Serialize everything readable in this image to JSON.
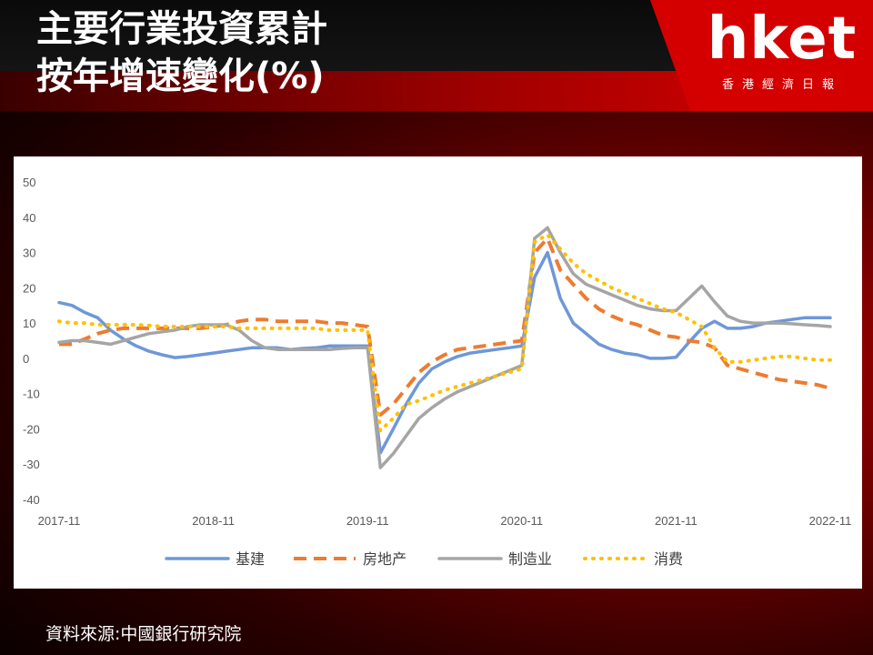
{
  "header": {
    "title_line1": "主要行業投資累計",
    "title_line2": "按年增速變化(%)"
  },
  "logo": {
    "brand": "hket",
    "subtitle": "香港經濟日報"
  },
  "source": "資料來源:中國銀行研究院",
  "colors": {
    "background_red": "#b30000",
    "logo_red": "#d40000",
    "series_infra": "#6e97d8",
    "series_property": "#ee7b30",
    "series_mfg": "#a5a5a5",
    "series_consumption": "#ffc000"
  },
  "chart_data": {
    "type": "line",
    "title": "",
    "xlabel": "",
    "ylabel": "",
    "ylim": [
      -40,
      50
    ],
    "yticks": [
      50,
      40,
      30,
      20,
      10,
      0,
      -10,
      -20,
      -30,
      -40
    ],
    "x_range": [
      0,
      60
    ],
    "xticks": [
      {
        "x": 0,
        "label": "2017-11"
      },
      {
        "x": 12,
        "label": "2018-11"
      },
      {
        "x": 24,
        "label": "2019-11"
      },
      {
        "x": 36,
        "label": "2020-11"
      },
      {
        "x": 48,
        "label": "2021-11"
      },
      {
        "x": 60,
        "label": "2022-11"
      }
    ],
    "grid": false,
    "legend_position": "bottom",
    "series": [
      {
        "name": "基建",
        "color": "#6e97d8",
        "style": "solid",
        "points": [
          [
            0,
            15.8
          ],
          [
            1,
            15
          ],
          [
            2,
            13
          ],
          [
            3,
            11.5
          ],
          [
            4,
            8
          ],
          [
            5,
            5.5
          ],
          [
            6,
            3.5
          ],
          [
            7,
            2
          ],
          [
            8,
            1
          ],
          [
            9,
            0.2
          ],
          [
            10,
            0.5
          ],
          [
            11,
            1
          ],
          [
            12,
            1.5
          ],
          [
            13,
            2
          ],
          [
            14,
            2.5
          ],
          [
            15,
            3
          ],
          [
            16,
            3
          ],
          [
            17,
            3
          ],
          [
            18,
            2.5
          ],
          [
            19,
            2.8
          ],
          [
            20,
            3
          ],
          [
            21,
            3.5
          ],
          [
            22,
            3.5
          ],
          [
            23,
            3.5
          ],
          [
            24,
            3.5
          ],
          [
            25,
            -26.8
          ],
          [
            26,
            -20
          ],
          [
            27,
            -13
          ],
          [
            28,
            -7
          ],
          [
            29,
            -3
          ],
          [
            30,
            -1
          ],
          [
            31,
            0.5
          ],
          [
            32,
            1.5
          ],
          [
            33,
            2
          ],
          [
            34,
            2.5
          ],
          [
            35,
            3
          ],
          [
            36,
            3.5
          ],
          [
            37,
            23
          ],
          [
            38,
            30
          ],
          [
            39,
            17
          ],
          [
            40,
            10
          ],
          [
            41,
            7
          ],
          [
            42,
            4
          ],
          [
            43,
            2.5
          ],
          [
            44,
            1.5
          ],
          [
            45,
            1
          ],
          [
            46,
            0
          ],
          [
            47,
            0
          ],
          [
            48,
            0.3
          ],
          [
            49,
            4.5
          ],
          [
            50,
            8.5
          ],
          [
            51,
            10.5
          ],
          [
            52,
            8.5
          ],
          [
            53,
            8.5
          ],
          [
            54,
            9
          ],
          [
            55,
            10
          ],
          [
            56,
            10.5
          ],
          [
            57,
            11
          ],
          [
            58,
            11.5
          ],
          [
            59,
            11.5
          ],
          [
            60,
            11.5
          ]
        ]
      },
      {
        "name": "房地产",
        "color": "#ee7b30",
        "style": "dashed",
        "points": [
          [
            0,
            4
          ],
          [
            1,
            4
          ],
          [
            2,
            5.5
          ],
          [
            3,
            7
          ],
          [
            4,
            8
          ],
          [
            5,
            8.5
          ],
          [
            6,
            8.5
          ],
          [
            7,
            8.5
          ],
          [
            8,
            8.5
          ],
          [
            9,
            8.5
          ],
          [
            10,
            8.5
          ],
          [
            11,
            8.5
          ],
          [
            12,
            9
          ],
          [
            13,
            9.5
          ],
          [
            14,
            10.5
          ],
          [
            15,
            11
          ],
          [
            16,
            11
          ],
          [
            17,
            10.5
          ],
          [
            18,
            10.5
          ],
          [
            19,
            10.5
          ],
          [
            20,
            10.5
          ],
          [
            21,
            10
          ],
          [
            22,
            10
          ],
          [
            23,
            9.5
          ],
          [
            24,
            9
          ],
          [
            25,
            -16
          ],
          [
            26,
            -13
          ],
          [
            27,
            -8.5
          ],
          [
            28,
            -4
          ],
          [
            29,
            -1
          ],
          [
            30,
            1
          ],
          [
            31,
            2.5
          ],
          [
            32,
            3
          ],
          [
            33,
            3.5
          ],
          [
            34,
            4
          ],
          [
            35,
            4.5
          ],
          [
            36,
            5
          ],
          [
            37,
            30
          ],
          [
            38,
            34
          ],
          [
            39,
            25
          ],
          [
            40,
            21
          ],
          [
            41,
            17
          ],
          [
            42,
            14
          ],
          [
            43,
            12
          ],
          [
            44,
            10.5
          ],
          [
            45,
            9.5
          ],
          [
            46,
            8
          ],
          [
            47,
            6.5
          ],
          [
            48,
            6
          ],
          [
            49,
            5
          ],
          [
            50,
            4.5
          ],
          [
            51,
            3
          ],
          [
            52,
            -2
          ],
          [
            53,
            -3
          ],
          [
            54,
            -4
          ],
          [
            55,
            -5
          ],
          [
            56,
            -6
          ],
          [
            57,
            -6.5
          ],
          [
            58,
            -7
          ],
          [
            59,
            -7.5
          ],
          [
            60,
            -8.5
          ]
        ]
      },
      {
        "name": "制造业",
        "color": "#a5a5a5",
        "style": "solid",
        "points": [
          [
            0,
            4.5
          ],
          [
            1,
            5
          ],
          [
            2,
            5
          ],
          [
            3,
            4.5
          ],
          [
            4,
            4
          ],
          [
            5,
            5
          ],
          [
            6,
            6
          ],
          [
            7,
            7
          ],
          [
            8,
            7.5
          ],
          [
            9,
            8
          ],
          [
            10,
            9
          ],
          [
            11,
            9.5
          ],
          [
            12,
            9.5
          ],
          [
            13,
            9.5
          ],
          [
            14,
            8
          ],
          [
            15,
            5
          ],
          [
            16,
            3
          ],
          [
            17,
            2.5
          ],
          [
            18,
            2.5
          ],
          [
            19,
            2.5
          ],
          [
            20,
            2.5
          ],
          [
            21,
            2.5
          ],
          [
            22,
            2.8
          ],
          [
            23,
            3
          ],
          [
            24,
            3
          ],
          [
            25,
            -31
          ],
          [
            26,
            -27
          ],
          [
            27,
            -22
          ],
          [
            28,
            -17
          ],
          [
            29,
            -14
          ],
          [
            30,
            -11.5
          ],
          [
            31,
            -9.5
          ],
          [
            32,
            -8
          ],
          [
            33,
            -6.5
          ],
          [
            34,
            -5
          ],
          [
            35,
            -3.5
          ],
          [
            36,
            -2
          ],
          [
            37,
            34
          ],
          [
            38,
            37
          ],
          [
            39,
            30
          ],
          [
            40,
            24
          ],
          [
            41,
            21
          ],
          [
            42,
            19.5
          ],
          [
            43,
            18
          ],
          [
            44,
            16.5
          ],
          [
            45,
            15
          ],
          [
            46,
            14
          ],
          [
            47,
            13.5
          ],
          [
            48,
            13.5
          ],
          [
            49,
            17
          ],
          [
            50,
            20.5
          ],
          [
            51,
            16
          ],
          [
            52,
            12
          ],
          [
            53,
            10.5
          ],
          [
            54,
            10
          ],
          [
            55,
            10
          ],
          [
            56,
            10
          ],
          [
            57,
            9.8
          ],
          [
            58,
            9.5
          ],
          [
            59,
            9.3
          ],
          [
            60,
            9
          ]
        ]
      },
      {
        "name": "消费",
        "color": "#ffc000",
        "style": "dotted",
        "points": [
          [
            0,
            10.5
          ],
          [
            1,
            10
          ],
          [
            2,
            10
          ],
          [
            3,
            9.5
          ],
          [
            4,
            9.5
          ],
          [
            5,
            9.5
          ],
          [
            6,
            9.5
          ],
          [
            7,
            9.3
          ],
          [
            8,
            9
          ],
          [
            9,
            9
          ],
          [
            10,
            9
          ],
          [
            11,
            9
          ],
          [
            12,
            9
          ],
          [
            13,
            9
          ],
          [
            14,
            8.5
          ],
          [
            15,
            8.5
          ],
          [
            16,
            8.5
          ],
          [
            17,
            8.5
          ],
          [
            18,
            8.5
          ],
          [
            19,
            8.5
          ],
          [
            20,
            8.5
          ],
          [
            21,
            8
          ],
          [
            22,
            8
          ],
          [
            23,
            8
          ],
          [
            24,
            8
          ],
          [
            25,
            -20.5
          ],
          [
            26,
            -17
          ],
          [
            27,
            -13
          ],
          [
            28,
            -12
          ],
          [
            29,
            -10.5
          ],
          [
            30,
            -9
          ],
          [
            31,
            -8
          ],
          [
            32,
            -7
          ],
          [
            33,
            -6
          ],
          [
            34,
            -5
          ],
          [
            35,
            -4
          ],
          [
            36,
            -3
          ],
          [
            37,
            33
          ],
          [
            38,
            35
          ],
          [
            39,
            31
          ],
          [
            40,
            27
          ],
          [
            41,
            24
          ],
          [
            42,
            22
          ],
          [
            43,
            20
          ],
          [
            44,
            18.5
          ],
          [
            45,
            17
          ],
          [
            46,
            15.5
          ],
          [
            47,
            14
          ],
          [
            48,
            13
          ],
          [
            49,
            11
          ],
          [
            50,
            9
          ],
          [
            51,
            3
          ],
          [
            52,
            -1
          ],
          [
            53,
            -1
          ],
          [
            54,
            -0.5
          ],
          [
            55,
            0
          ],
          [
            56,
            0.5
          ],
          [
            57,
            0.5
          ],
          [
            58,
            0
          ],
          [
            59,
            -0.5
          ],
          [
            60,
            -0.5
          ]
        ]
      }
    ]
  }
}
